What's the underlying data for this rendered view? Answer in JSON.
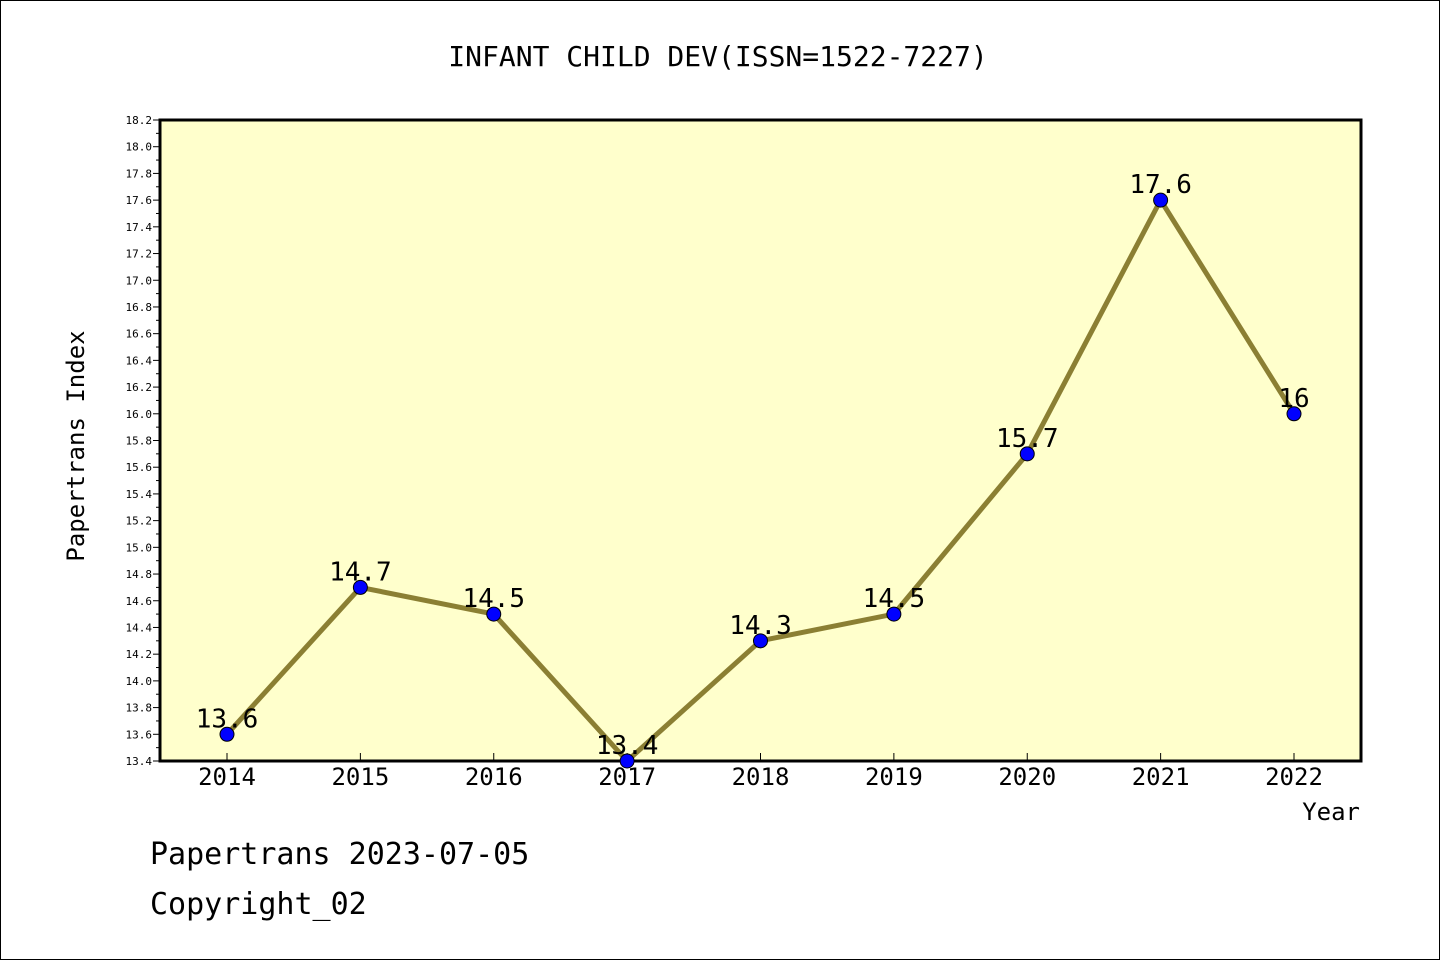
{
  "chart_data": {
    "type": "line",
    "title": "INFANT CHILD DEV(ISSN=1522-7227)",
    "xlabel": "Year",
    "ylabel": "Papertrans Index",
    "x": [
      "2014",
      "2015",
      "2016",
      "2017",
      "2018",
      "2019",
      "2020",
      "2021",
      "2022"
    ],
    "values": [
      13.6,
      14.7,
      14.5,
      13.4,
      14.3,
      14.5,
      15.7,
      17.6,
      16.0
    ],
    "data_labels": [
      "13.6",
      "14.7",
      "14.5",
      "13.4",
      "14.3",
      "14.5",
      "15.7",
      "17.6",
      "16"
    ],
    "ylim": [
      13.4,
      18.2
    ],
    "ytick_labels": [
      "13.4",
      "13.6",
      "13.8",
      "14.0",
      "14.2",
      "14.4",
      "14.6",
      "14.8",
      "15.0",
      "15.2",
      "15.4",
      "15.6",
      "15.8",
      "16.0",
      "16.2",
      "16.4",
      "16.6",
      "16.8",
      "17.0",
      "17.2",
      "17.4",
      "17.6",
      "17.8",
      "18.0",
      "18.2"
    ],
    "grid": false,
    "legend": "none",
    "colors": {
      "plot_background": "#ffffcc",
      "line": "#8b7f33",
      "marker": "#0000ff"
    }
  },
  "footer": {
    "line1": "Papertrans 2023-07-05",
    "line2": "Copyright_02"
  }
}
